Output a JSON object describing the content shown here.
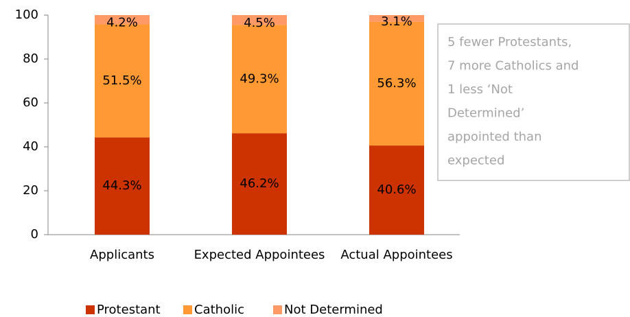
{
  "chart_data": {
    "type": "bar",
    "stacked": true,
    "categories": [
      "Applicants",
      "Expected Appointees",
      "Actual Appointees"
    ],
    "series": [
      {
        "name": "Protestant",
        "color": "#cc3300",
        "values": [
          44.3,
          46.2,
          40.6
        ],
        "value_labels": [
          "44.3%",
          "46.2%",
          "40.6%"
        ]
      },
      {
        "name": "Catholic",
        "color": "#ff9933",
        "values": [
          51.5,
          49.3,
          56.3
        ],
        "value_labels": [
          "51.5%",
          "49.3%",
          "56.3%"
        ]
      },
      {
        "name": "Not Determined",
        "color": "#ff9966",
        "values": [
          4.2,
          4.5,
          3.1
        ],
        "value_labels": [
          "4.2%",
          "4.5%",
          "3.1%"
        ]
      }
    ],
    "ylim": [
      0,
      100
    ],
    "yticks": [
      0,
      20,
      40,
      60,
      80,
      100
    ],
    "grid": false,
    "legend": "bottom",
    "annotation": [
      "5 fewer Protestants,",
      "7 more Catholics and",
      "1 less ‘Not",
      "Determined’",
      "appointed than",
      "expected"
    ]
  }
}
